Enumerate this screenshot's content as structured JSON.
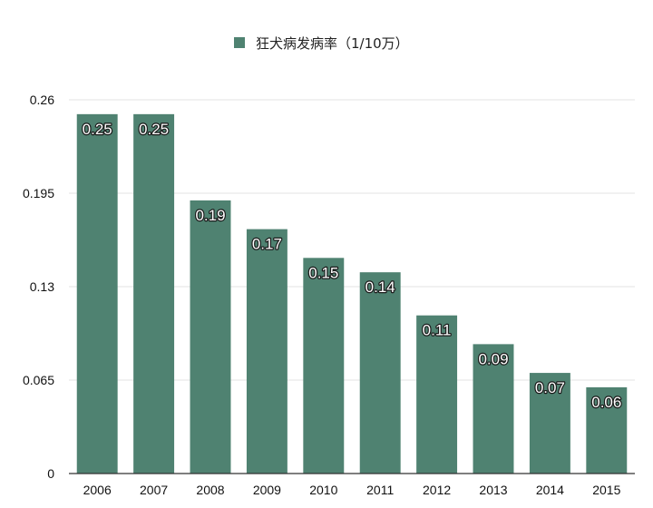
{
  "chart_data": {
    "type": "bar",
    "title": "",
    "xlabel": "",
    "ylabel": "",
    "legend": {
      "label": "狂犬病发病率（1/10万）",
      "position": "top-center"
    },
    "colors": {
      "bar": "#4f8271",
      "grid": "#e3e3e3",
      "axis": "#333333"
    },
    "categories": [
      "2006",
      "2007",
      "2008",
      "2009",
      "2010",
      "2011",
      "2012",
      "2013",
      "2014",
      "2015"
    ],
    "series": [
      {
        "name": "狂犬病发病率（1/10万）",
        "values": [
          0.25,
          0.25,
          0.19,
          0.17,
          0.15,
          0.14,
          0.11,
          0.09,
          0.07,
          0.06
        ],
        "labels": [
          "0.25",
          "0.25",
          "0.19",
          "0.17",
          "0.15",
          "0.14",
          "0.11",
          "0.09",
          "0.07",
          "0.06"
        ]
      }
    ],
    "yticks": [
      "0",
      "0.065",
      "0.13",
      "0.195",
      "0.26"
    ],
    "ylim": [
      0,
      0.26
    ],
    "grid": true
  }
}
